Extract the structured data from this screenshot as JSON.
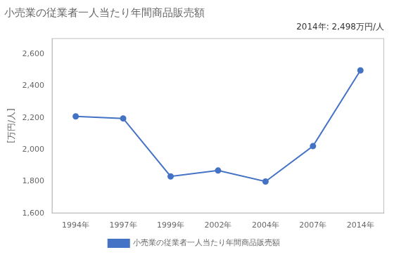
{
  "chart_data": {
    "type": "line",
    "title": "小売業の従業者一人当たり年間商品販売額",
    "ylabel": "[万円/人]",
    "annotation": "2014年: 2,498万円/人",
    "categories": [
      "1994年",
      "1997年",
      "1999年",
      "2002年",
      "2004年",
      "2007年",
      "2014年"
    ],
    "series": [
      {
        "name": "小売業の従業者一人当たり年間商品販売額",
        "color": "#4472C4",
        "marker": "circle",
        "line_style": "solid",
        "values": [
          2209,
          2196,
          1832,
          1869,
          1800,
          2022,
          2498
        ]
      }
    ],
    "ylim": [
      1600,
      2700
    ],
    "yticks": [
      {
        "value": 1600,
        "label": "1,600"
      },
      {
        "value": 1800,
        "label": "1,800"
      },
      {
        "value": 2000,
        "label": "2,000"
      },
      {
        "value": 2200,
        "label": "2,200"
      },
      {
        "value": 2400,
        "label": "2,400"
      },
      {
        "value": 2600,
        "label": "2,600"
      }
    ],
    "grid": false,
    "legend": "bottom"
  }
}
